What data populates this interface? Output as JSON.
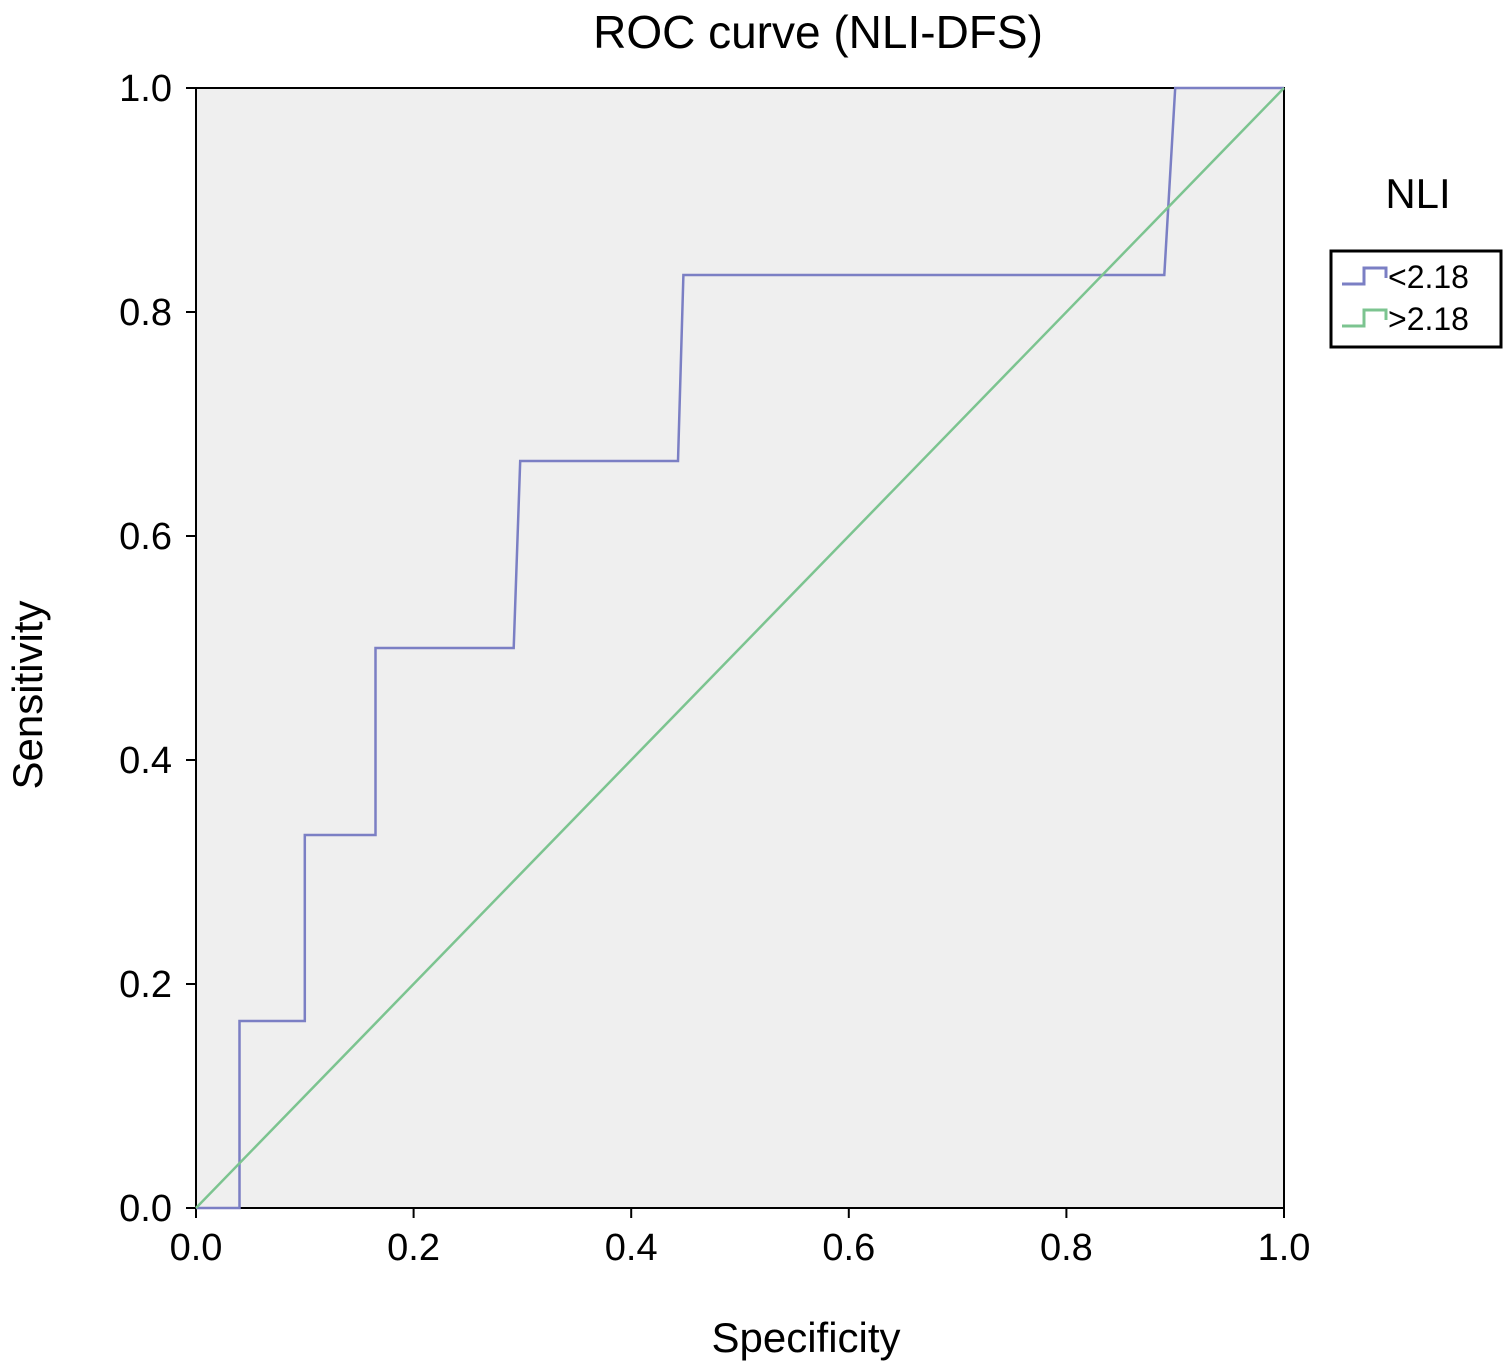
{
  "chart_data": {
    "type": "line",
    "title": "ROC curve (NLI-DFS)",
    "xlabel": "Specificity",
    "ylabel": "Sensitivity",
    "xlim": [
      0,
      1
    ],
    "ylim": [
      0,
      1
    ],
    "x_ticks": [
      "0.0",
      "0.2",
      "0.4",
      "0.6",
      "0.8",
      "1.0"
    ],
    "y_ticks": [
      "0.0",
      "0.2",
      "0.4",
      "0.6",
      "0.8",
      "1.0"
    ],
    "grid": false,
    "legend": {
      "title": "NLI",
      "position": "right",
      "entries": [
        "<2.18",
        ">2.18"
      ]
    },
    "series": [
      {
        "name": "<2.18",
        "color": "#7b7fc4",
        "step": true,
        "x": [
          0,
          0.04,
          0.04,
          0.1,
          0.1,
          0.165,
          0.165,
          0.292,
          0.298,
          0.443,
          0.448,
          0.89,
          0.9,
          1.0
        ],
        "y": [
          0,
          0,
          0.167,
          0.167,
          0.333,
          0.333,
          0.5,
          0.5,
          0.667,
          0.667,
          0.833,
          0.833,
          1.0,
          1.0
        ]
      },
      {
        "name": ">2.18",
        "color": "#7cc490",
        "step": false,
        "x": [
          0,
          1
        ],
        "y": [
          0,
          1
        ]
      }
    ],
    "colors": {
      "plot_background": "#efefef",
      "axis": "#000000"
    }
  }
}
